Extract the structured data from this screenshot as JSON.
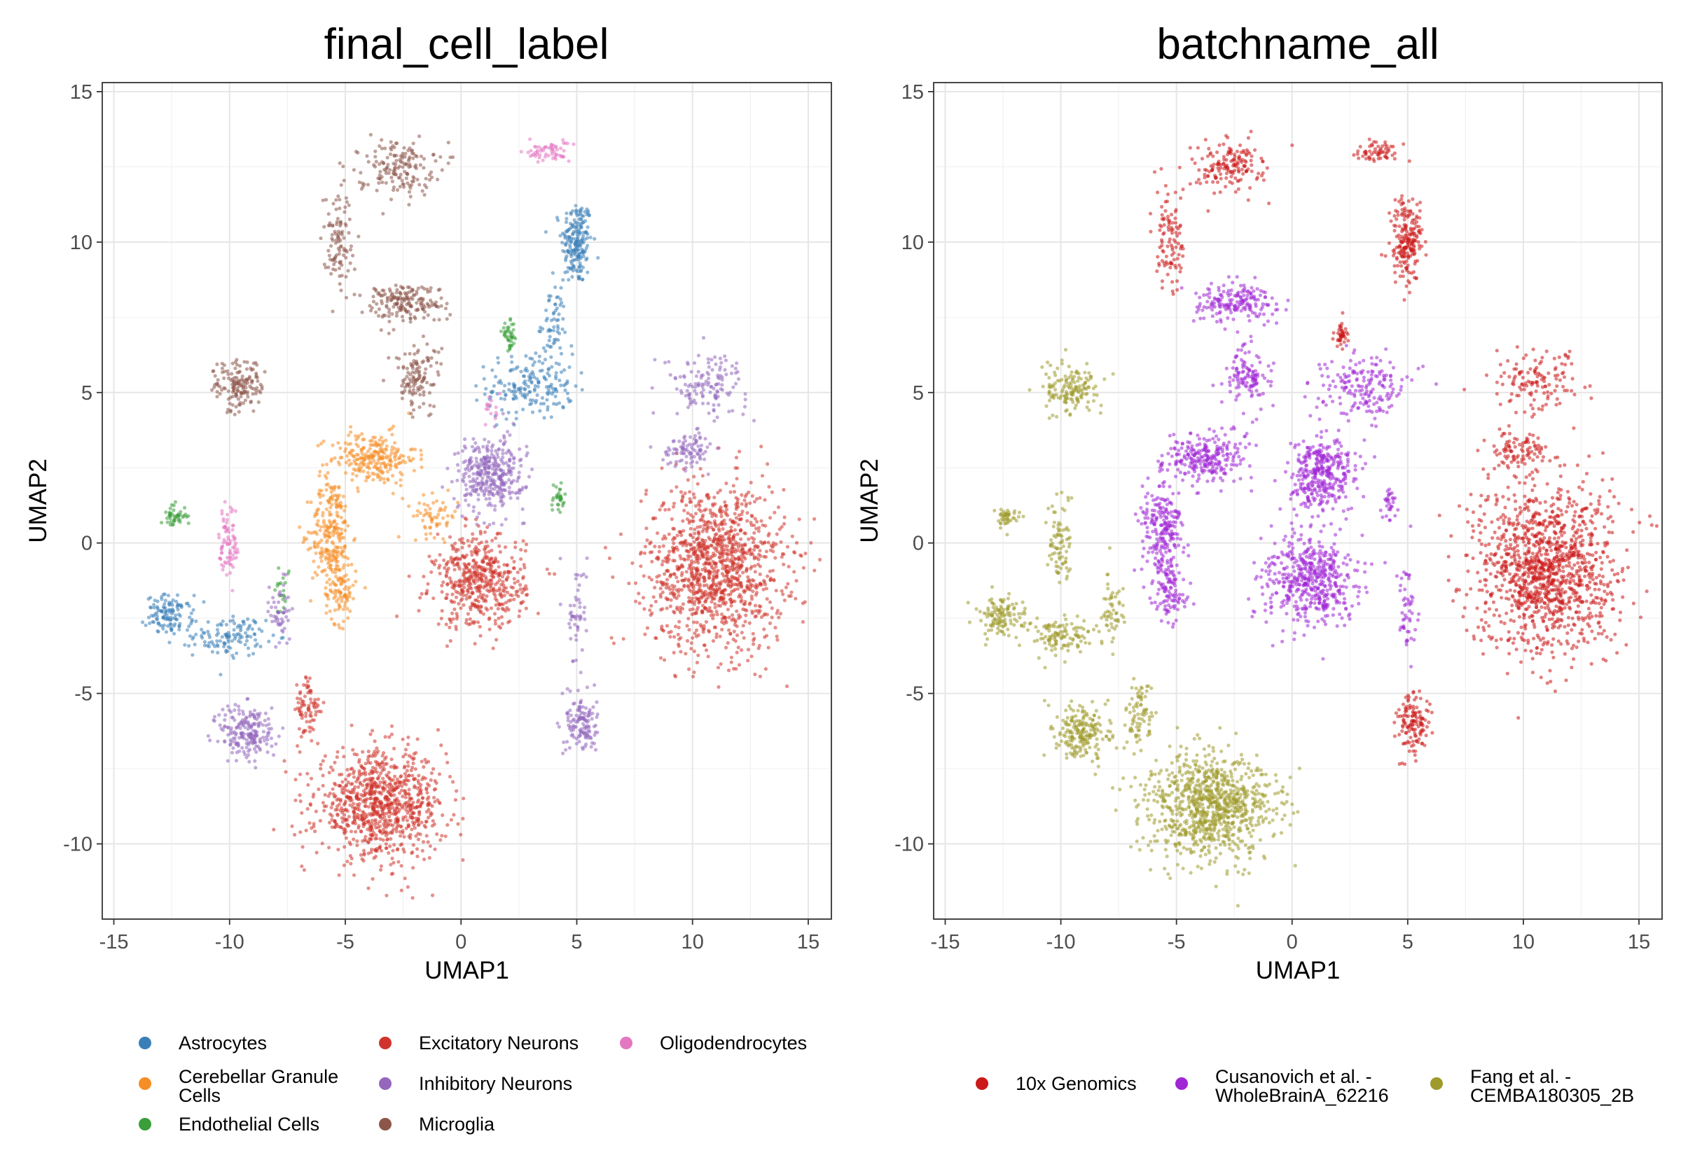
{
  "chart_data": [
    {
      "type": "scatter",
      "title": "final_cell_label",
      "xlabel": "UMAP1",
      "ylabel": "UMAP2",
      "xlim": [
        -15.5,
        16
      ],
      "ylim": [
        -12.5,
        15.3
      ],
      "xticks": [
        -15,
        -10,
        -5,
        0,
        5,
        10,
        15
      ],
      "xtick_labels": [
        "-15",
        "-10",
        "-5",
        "0",
        "5",
        "10",
        "15"
      ],
      "yticks": [
        -10,
        -5,
        0,
        5,
        10,
        15
      ],
      "ytick_labels": [
        "-10",
        "-5",
        "0",
        "5",
        "10",
        "15"
      ],
      "grid": true,
      "legend_position": "bottom",
      "series": [
        {
          "name": "Astrocytes",
          "color": "#3B7FB8",
          "clusters": [
            [
              5.0,
              10.0,
              0.6,
              1.3,
              200
            ],
            [
              3.0,
              5.2,
              1.7,
              1.0,
              180
            ],
            [
              4.0,
              7.3,
              0.5,
              1.2,
              60
            ],
            [
              -12.6,
              -2.4,
              0.9,
              0.6,
              120
            ],
            [
              -10.0,
              -3.1,
              1.4,
              0.6,
              120
            ]
          ]
        },
        {
          "name": "Cerebellar Granule Cells",
          "color": "#F58E27",
          "clusters": [
            [
              -3.8,
              2.8,
              1.7,
              0.8,
              250
            ],
            [
              -5.6,
              0.3,
              0.8,
              1.7,
              250
            ],
            [
              -5.2,
              -1.7,
              0.6,
              0.9,
              80
            ],
            [
              -1.1,
              0.9,
              0.9,
              0.6,
              60
            ]
          ]
        },
        {
          "name": "Endothelial Cells",
          "color": "#3A9E3A",
          "clusters": [
            [
              -12.4,
              0.9,
              0.5,
              0.35,
              45
            ],
            [
              2.1,
              6.9,
              0.3,
              0.4,
              40
            ],
            [
              4.2,
              1.4,
              0.3,
              0.6,
              30
            ],
            [
              -7.7,
              -1.5,
              0.3,
              0.8,
              20
            ]
          ]
        },
        {
          "name": "Excitatory Neurons",
          "color": "#D0342C",
          "clusters": [
            [
              11.0,
              -0.8,
              2.7,
              2.5,
              1200
            ],
            [
              -3.5,
              -8.7,
              2.5,
              1.6,
              900
            ],
            [
              0.8,
              -1.3,
              1.8,
              1.4,
              500
            ],
            [
              -6.6,
              -5.6,
              0.5,
              1.1,
              80
            ]
          ]
        },
        {
          "name": "Inhibitory Neurons",
          "color": "#9467BD",
          "clusters": [
            [
              10.6,
              5.3,
              1.6,
              0.9,
              130
            ],
            [
              9.8,
              3.1,
              1.0,
              0.5,
              90
            ],
            [
              1.3,
              2.3,
              1.3,
              1.1,
              350
            ],
            [
              5.2,
              -6.0,
              0.6,
              0.9,
              130
            ],
            [
              5.0,
              -2.3,
              0.4,
              1.5,
              50
            ],
            [
              -9.2,
              -6.3,
              1.1,
              0.9,
              200
            ],
            [
              -7.8,
              -2.3,
              0.4,
              1.1,
              50
            ]
          ]
        },
        {
          "name": "Microglia",
          "color": "#8C564B",
          "clusters": [
            [
              -2.8,
              12.5,
              1.5,
              0.8,
              160
            ],
            [
              -5.3,
              10.2,
              0.6,
              1.5,
              100
            ],
            [
              -2.5,
              8.0,
              1.6,
              0.6,
              180
            ],
            [
              -1.9,
              5.5,
              0.9,
              1.0,
              120
            ],
            [
              -9.6,
              5.2,
              1.0,
              0.8,
              150
            ]
          ]
        },
        {
          "name": "Oligodendrocytes",
          "color": "#E377C2",
          "clusters": [
            [
              3.7,
              13.0,
              0.9,
              0.3,
              60
            ],
            [
              -10.0,
              0.0,
              0.4,
              1.3,
              80
            ],
            [
              1.3,
              4.5,
              0.3,
              0.4,
              15
            ]
          ]
        }
      ]
    },
    {
      "type": "scatter",
      "title": "batchname_all",
      "xlabel": "UMAP1",
      "ylabel": "UMAP2",
      "xlim": [
        -15.5,
        16
      ],
      "ylim": [
        -12.5,
        15.3
      ],
      "xticks": [
        -15,
        -10,
        -5,
        0,
        5,
        10,
        15
      ],
      "xtick_labels": [
        "-15",
        "-10",
        "-5",
        "0",
        "5",
        "10",
        "15"
      ],
      "yticks": [
        -10,
        -5,
        0,
        5,
        10,
        15
      ],
      "ytick_labels": [
        "-10",
        "-5",
        "0",
        "5",
        "10",
        "15"
      ],
      "grid": true,
      "legend_position": "bottom",
      "series": [
        {
          "name": "10x Genomics",
          "color": "#CC1818",
          "clusters": [
            [
              11.0,
              -0.8,
              2.7,
              2.5,
              1200
            ],
            [
              -2.8,
              12.5,
              1.5,
              0.8,
              160
            ],
            [
              -5.3,
              10.2,
              0.6,
              1.5,
              100
            ],
            [
              5.0,
              10.0,
              0.6,
              1.3,
              200
            ],
            [
              10.6,
              5.3,
              1.6,
              0.9,
              130
            ],
            [
              9.8,
              3.1,
              1.0,
              0.5,
              90
            ],
            [
              5.2,
              -6.0,
              0.6,
              0.9,
              130
            ],
            [
              3.7,
              13.0,
              0.9,
              0.3,
              60
            ],
            [
              2.1,
              6.9,
              0.3,
              0.4,
              40
            ]
          ]
        },
        {
          "name": "Cusanovich et al. - WholeBrainA_62216",
          "color": "#A026D6",
          "clusters": [
            [
              -3.8,
              2.8,
              1.7,
              0.8,
              250
            ],
            [
              -5.6,
              0.3,
              0.8,
              1.7,
              250
            ],
            [
              -5.2,
              -1.7,
              0.6,
              0.9,
              80
            ],
            [
              0.8,
              -1.3,
              1.8,
              1.4,
              500
            ],
            [
              1.3,
              2.3,
              1.3,
              1.1,
              350
            ],
            [
              3.0,
              5.2,
              1.7,
              1.0,
              180
            ],
            [
              -2.5,
              8.0,
              1.6,
              0.6,
              180
            ],
            [
              -1.9,
              5.5,
              0.9,
              1.0,
              120
            ],
            [
              4.2,
              1.4,
              0.3,
              0.6,
              30
            ],
            [
              5.0,
              -2.3,
              0.4,
              1.5,
              50
            ]
          ]
        },
        {
          "name": "Fang et al. - CEMBA180305_2B",
          "color": "#9E9A2B",
          "clusters": [
            [
              -3.5,
              -8.7,
              2.5,
              1.6,
              900
            ],
            [
              -9.6,
              5.2,
              1.0,
              0.8,
              150
            ],
            [
              -12.6,
              -2.4,
              0.9,
              0.6,
              120
            ],
            [
              -10.0,
              -3.1,
              1.4,
              0.6,
              120
            ],
            [
              -9.2,
              -6.3,
              1.1,
              0.9,
              200
            ],
            [
              -12.4,
              0.9,
              0.5,
              0.35,
              45
            ],
            [
              -10.0,
              0.0,
              0.4,
              1.3,
              80
            ],
            [
              -6.6,
              -5.6,
              0.5,
              1.1,
              80
            ],
            [
              -7.8,
              -2.3,
              0.4,
              1.1,
              50
            ]
          ]
        }
      ]
    }
  ],
  "legends": [
    {
      "items": [
        {
          "label_lines": [
            "Astrocytes"
          ],
          "color": "#3B7FB8"
        },
        {
          "label_lines": [
            "Cerebellar Granule",
            "Cells"
          ],
          "color": "#F58E27"
        },
        {
          "label_lines": [
            "Endothelial Cells"
          ],
          "color": "#3A9E3A"
        },
        {
          "label_lines": [
            "Excitatory Neurons"
          ],
          "color": "#D0342C"
        },
        {
          "label_lines": [
            "Inhibitory Neurons"
          ],
          "color": "#9467BD"
        },
        {
          "label_lines": [
            "Microglia"
          ],
          "color": "#8C564B"
        },
        {
          "label_lines": [
            "Oligodendrocytes"
          ],
          "color": "#E377C2"
        }
      ]
    },
    {
      "items": [
        {
          "label_lines": [
            "10x Genomics"
          ],
          "color": "#CC1818"
        },
        {
          "label_lines": [
            "Cusanovich et al. -",
            "WholeBrainA_62216"
          ],
          "color": "#A026D6"
        },
        {
          "label_lines": [
            "Fang et al. -",
            "CEMBA180305_2B"
          ],
          "color": "#9E9A2B"
        }
      ]
    }
  ]
}
